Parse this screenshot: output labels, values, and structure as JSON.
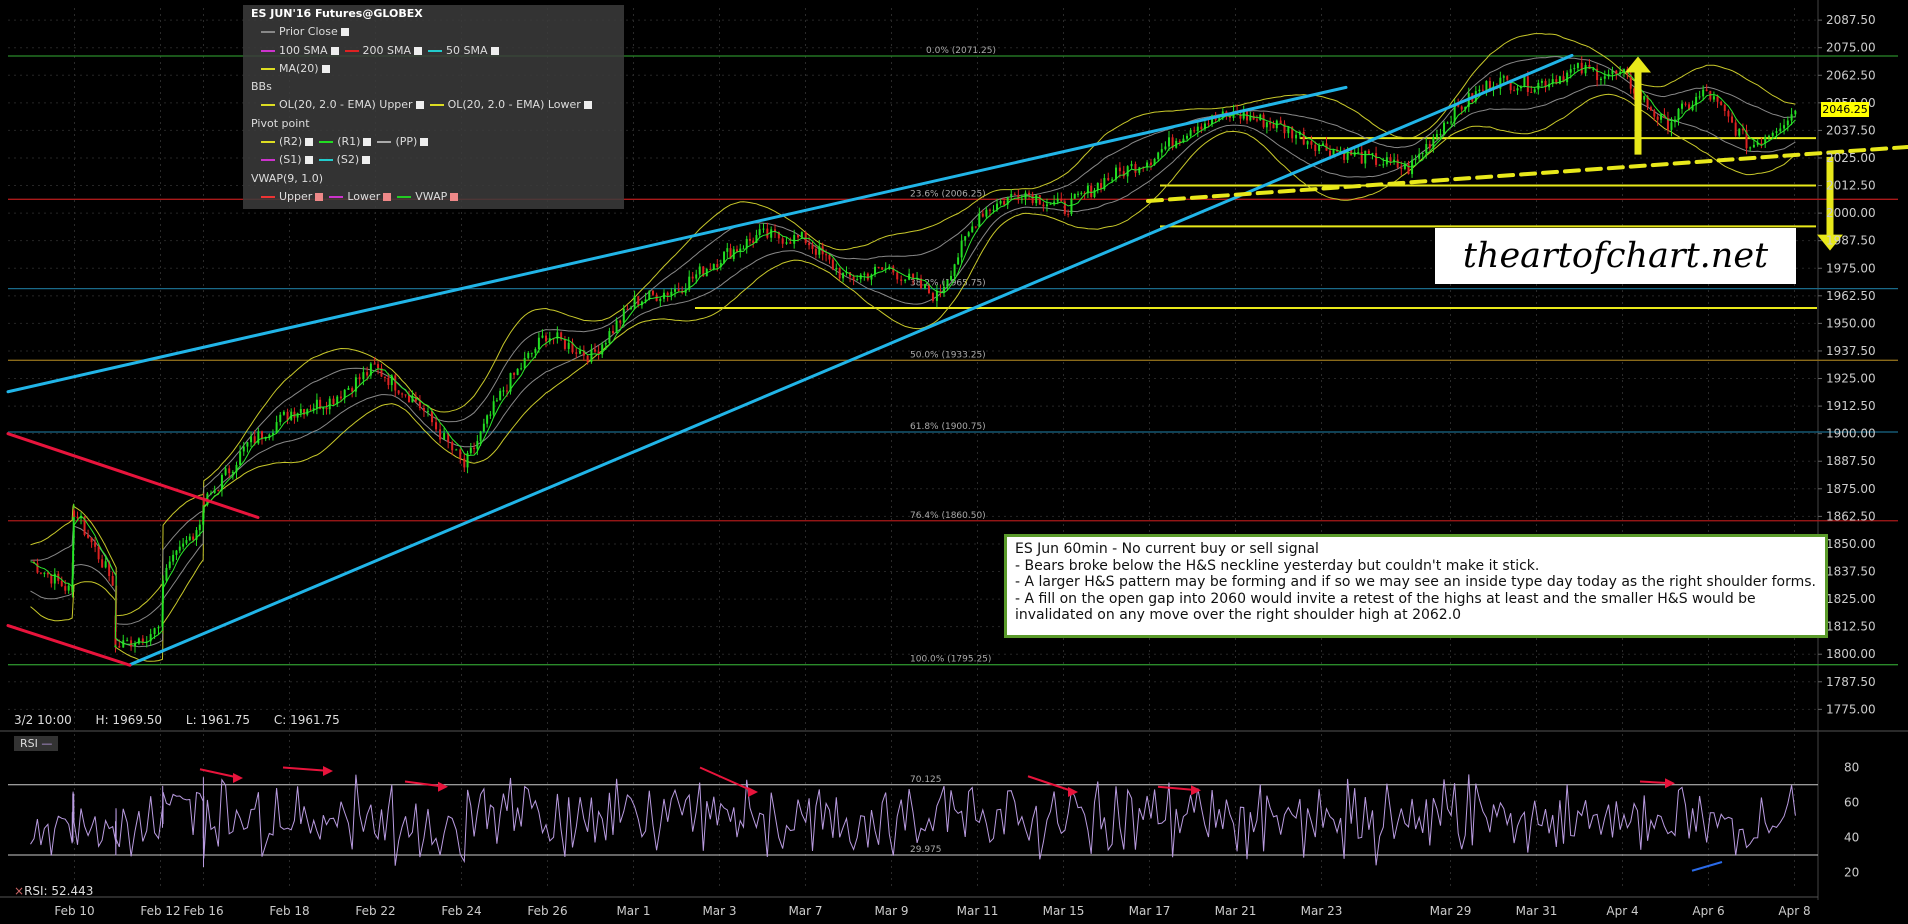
{
  "legend": {
    "title": "ES JUN'16 Futures@GLOBEX",
    "prior_close": "Prior Close",
    "sma100": "100 SMA",
    "sma200": "200 SMA",
    "sma50": "50 SMA",
    "ma20": "MA(20)",
    "bbs": "BBs",
    "bb_upper": "OL(20, 2.0 - EMA) Upper",
    "bb_lower": "OL(20, 2.0 - EMA) Lower",
    "pivot": "Pivot point",
    "r2": "(R2)",
    "r1": "(R1)",
    "pp": "(PP)",
    "s1": "(S1)",
    "s2": "(S2)",
    "vwap_title": "VWAP(9, 1.0)",
    "vwap_upper": "Upper",
    "vwap_lower": "Lower",
    "vwap": "VWAP"
  },
  "watermark": "theartofchart.net",
  "note": {
    "title": "ES Jun 60min - No current buy or sell signal",
    "line1": "- Bears broke below the H&S neckline yesterday but couldn't make it stick.",
    "line2": "- A larger H&S pattern may be forming and if so we may see an inside type day today as the right shoulder forms.",
    "line3": "- A fill on the open gap into 2060 would invite a retest of the highs at least and the smaller H&S would be",
    "line4": "invalidated on any move over the right shoulder high at 2062.0"
  },
  "ohlc": {
    "date": "3/2 10:00",
    "high": "H: 1969.50",
    "low": "L: 1961.75",
    "close": "C: 1961.75"
  },
  "rsi": {
    "label": "RSI",
    "value_label": "RSI: 52.443"
  },
  "colors": {
    "background": "#000000",
    "fib_green": "#2a8a2a",
    "fib_red": "#aa1a1a",
    "fib_cyan": "#1a6a8a",
    "fib_gold": "#8a6a1a",
    "channel_cyan": "#21b5e8",
    "trend_red": "#e8143c",
    "support_yellow": "#e8e81a",
    "rsi_purple": "#b99be0",
    "candle_up": "#22dd22",
    "candle_down": "#dd2222"
  },
  "chart_data": [
    {
      "type": "line",
      "title": "",
      "price_axis_labels": [
        "2087.50",
        "2075.00",
        "2062.50",
        "2050.00",
        "2037.50",
        "2025.00",
        "2012.50",
        "2000.00",
        "1987.50",
        "1975.00",
        "1962.50",
        "1950.00",
        "1937.50",
        "1925.00",
        "1912.50",
        "1900.00",
        "1887.50",
        "1875.00",
        "1862.50",
        "1850.00",
        "1837.50",
        "1825.00",
        "1812.50",
        "1800.00",
        "1787.50",
        "1775.00"
      ],
      "ylim": [
        1767,
        2093
      ],
      "x_tick_labels": [
        "Feb 10",
        "Feb 12",
        "Feb 16",
        "Feb 18",
        "Feb 22",
        "Feb 24",
        "Feb 26",
        "Mar 1",
        "Mar 3",
        "Mar 7",
        "Mar 9",
        "Mar 11",
        "Mar 15",
        "Mar 17",
        "Mar 21",
        "Mar 23",
        "Mar 29",
        "Mar 31",
        "Apr 4",
        "Apr 6",
        "Apr 8"
      ],
      "last_price": "2046.25",
      "fib_levels": [
        {
          "label": "0.0% (2071.25)",
          "value": 2071.25
        },
        {
          "label": "23.6% (2006.25)",
          "value": 2006.25
        },
        {
          "label": "38.2% (1965.75)",
          "value": 1965.75
        },
        {
          "label": "50.0% (1933.25)",
          "value": 1933.25
        },
        {
          "label": "61.8% (1900.75)",
          "value": 1900.75
        },
        {
          "label": "76.4% (1860.50)",
          "value": 1860.5
        },
        {
          "label": "100.0% (1795.25)",
          "value": 1795.25
        }
      ],
      "support_levels": [
        2034.0,
        2012.5,
        1994.0,
        1957.0
      ],
      "neckline": {
        "from": {
          "date": "Mar 16",
          "value": 2005.5
        },
        "to": {
          "date": "Apr 8",
          "value": 2029.0
        }
      },
      "close_path": [
        [
          "Feb 9",
          1842
        ],
        [
          "Feb 10",
          1828
        ],
        [
          "Feb 10",
          1865
        ],
        [
          "Feb 11",
          1830
        ],
        [
          "Feb 11",
          1803
        ],
        [
          "Feb 12",
          1812
        ],
        [
          "Feb 12",
          1835
        ],
        [
          "Feb 16",
          1862
        ],
        [
          "Feb 16",
          1868
        ],
        [
          "Feb 17",
          1895
        ],
        [
          "Feb 18",
          1910
        ],
        [
          "Feb 19",
          1915
        ],
        [
          "Feb 22",
          1930
        ],
        [
          "Feb 23",
          1915
        ],
        [
          "Feb 24",
          1885
        ],
        [
          "Feb 25",
          1920
        ],
        [
          "Feb 26",
          1945
        ],
        [
          "Feb 29",
          1935
        ],
        [
          "Mar 1",
          1960
        ],
        [
          "Mar 2",
          1966
        ],
        [
          "Mar 3",
          1980
        ],
        [
          "Mar 4",
          1990
        ],
        [
          "Mar 7",
          1988
        ],
        [
          "Mar 8",
          1970
        ],
        [
          "Mar 9",
          1975
        ],
        [
          "Mar 10",
          1962
        ],
        [
          "Mar 11",
          2000
        ],
        [
          "Mar 14",
          2010
        ],
        [
          "Mar 15",
          2002
        ],
        [
          "Mar 16",
          2015
        ],
        [
          "Mar 17",
          2025
        ],
        [
          "Mar 18",
          2040
        ],
        [
          "Mar 21",
          2045
        ],
        [
          "Mar 22",
          2040
        ],
        [
          "Mar 23",
          2030
        ],
        [
          "Mar 24",
          2025
        ],
        [
          "Mar 28",
          2020
        ],
        [
          "Mar 29",
          2045
        ],
        [
          "Mar 30",
          2060
        ],
        [
          "Mar 31",
          2058
        ],
        [
          "Apr 1",
          2065
        ],
        [
          "Apr 4",
          2062
        ],
        [
          "Apr 5",
          2040
        ],
        [
          "Apr 6",
          2055
        ],
        [
          "Apr 7",
          2030
        ],
        [
          "Apr 8",
          2046.25
        ]
      ]
    },
    {
      "type": "line",
      "title": "RSI",
      "ylim": [
        10,
        90
      ],
      "y_tick_labels": [
        "80",
        "60",
        "40",
        "20"
      ],
      "levels": [
        {
          "label": "70.125",
          "value": 70.125
        },
        {
          "label": "29.975",
          "value": 29.975
        }
      ],
      "last_value": 52.443
    }
  ]
}
